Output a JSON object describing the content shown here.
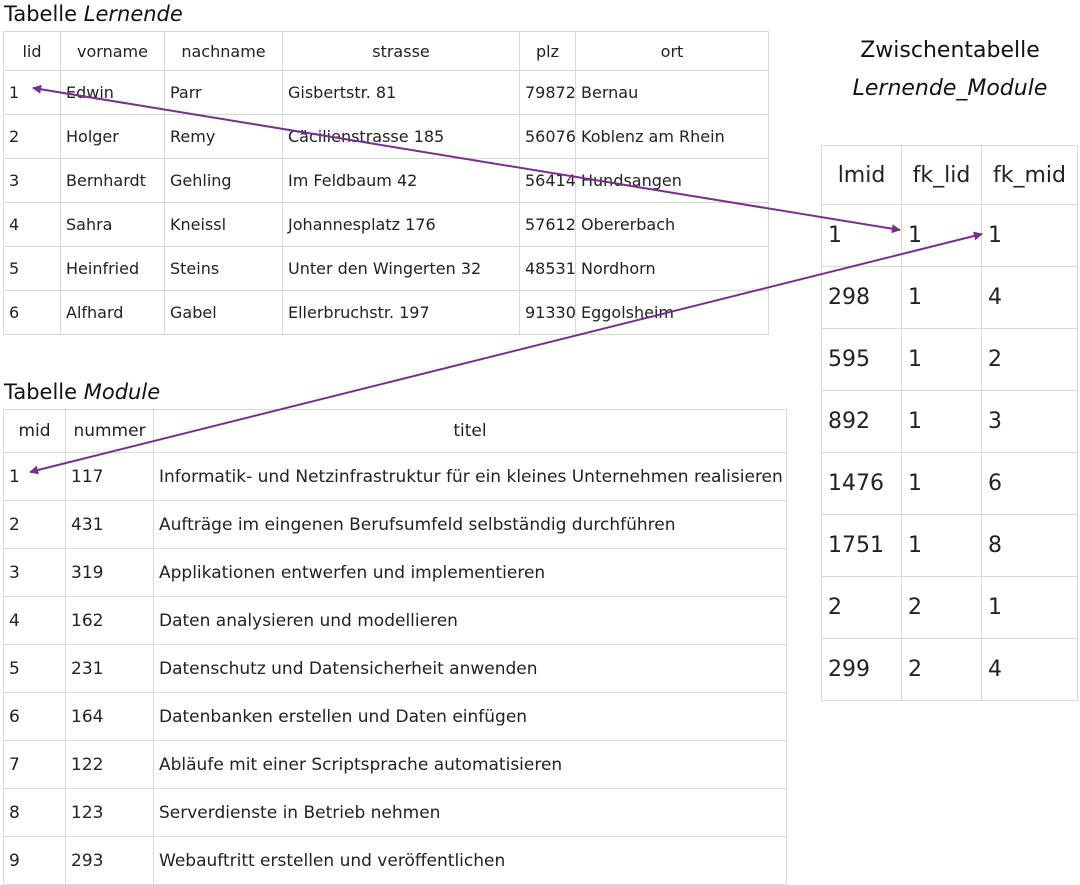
{
  "lernende": {
    "caption_prefix": "Tabelle",
    "caption_name": "Lernende",
    "columns": [
      "lid",
      "vorname",
      "nachname",
      "strasse",
      "plz",
      "ort"
    ],
    "rows": [
      [
        "1",
        "Edwin",
        "Parr",
        "Gisbertstr. 81",
        "79872",
        "Bernau"
      ],
      [
        "2",
        "Holger",
        "Remy",
        "Cäcilienstrasse 185",
        "56076",
        "Koblenz am Rhein"
      ],
      [
        "3",
        "Bernhardt",
        "Gehling",
        "Im Feldbaum 42",
        "56414",
        "Hundsangen"
      ],
      [
        "4",
        "Sahra",
        "Kneissl",
        "Johannesplatz 176",
        "57612",
        "Obererbach"
      ],
      [
        "5",
        "Heinfried",
        "Steins",
        "Unter den Wingerten 32",
        "48531",
        "Nordhorn"
      ],
      [
        "6",
        "Alfhard",
        "Gabel",
        "Ellerbruchstr. 197",
        "91330",
        "Eggolsheim"
      ]
    ]
  },
  "module": {
    "caption_prefix": "Tabelle",
    "caption_name": "Module",
    "columns": [
      "mid",
      "nummer",
      "titel"
    ],
    "rows": [
      [
        "1",
        "117",
        "Informatik- und Netzinfrastruktur für ein kleines Unternehmen realisieren"
      ],
      [
        "2",
        "431",
        "Aufträge im eingenen Berufsumfeld selbständig durchführen"
      ],
      [
        "3",
        "319",
        "Applikationen entwerfen und implementieren"
      ],
      [
        "4",
        "162",
        "Daten analysieren und modellieren"
      ],
      [
        "5",
        "231",
        "Datenschutz und Datensicherheit anwenden"
      ],
      [
        "6",
        "164",
        "Datenbanken erstellen und Daten einfügen"
      ],
      [
        "7",
        "122",
        "Abläufe mit einer Scriptsprache automatisieren"
      ],
      [
        "8",
        "123",
        "Serverdienste in Betrieb nehmen"
      ],
      [
        "9",
        "293",
        "Webauftritt erstellen und veröffentlichen"
      ]
    ]
  },
  "zwischentabelle": {
    "title_line1": "Zwischentabelle",
    "title_line2": "Lernende_Module",
    "columns": [
      "lmid",
      "fk_lid",
      "fk_mid"
    ],
    "rows": [
      [
        "1",
        "1",
        "1"
      ],
      [
        "298",
        "1",
        "4"
      ],
      [
        "595",
        "1",
        "2"
      ],
      [
        "892",
        "1",
        "3"
      ],
      [
        "1476",
        "1",
        "6"
      ],
      [
        "1751",
        "1",
        "8"
      ],
      [
        "2",
        "2",
        "1"
      ],
      [
        "299",
        "2",
        "4"
      ]
    ]
  },
  "arrow_color": "#7b2d8e"
}
